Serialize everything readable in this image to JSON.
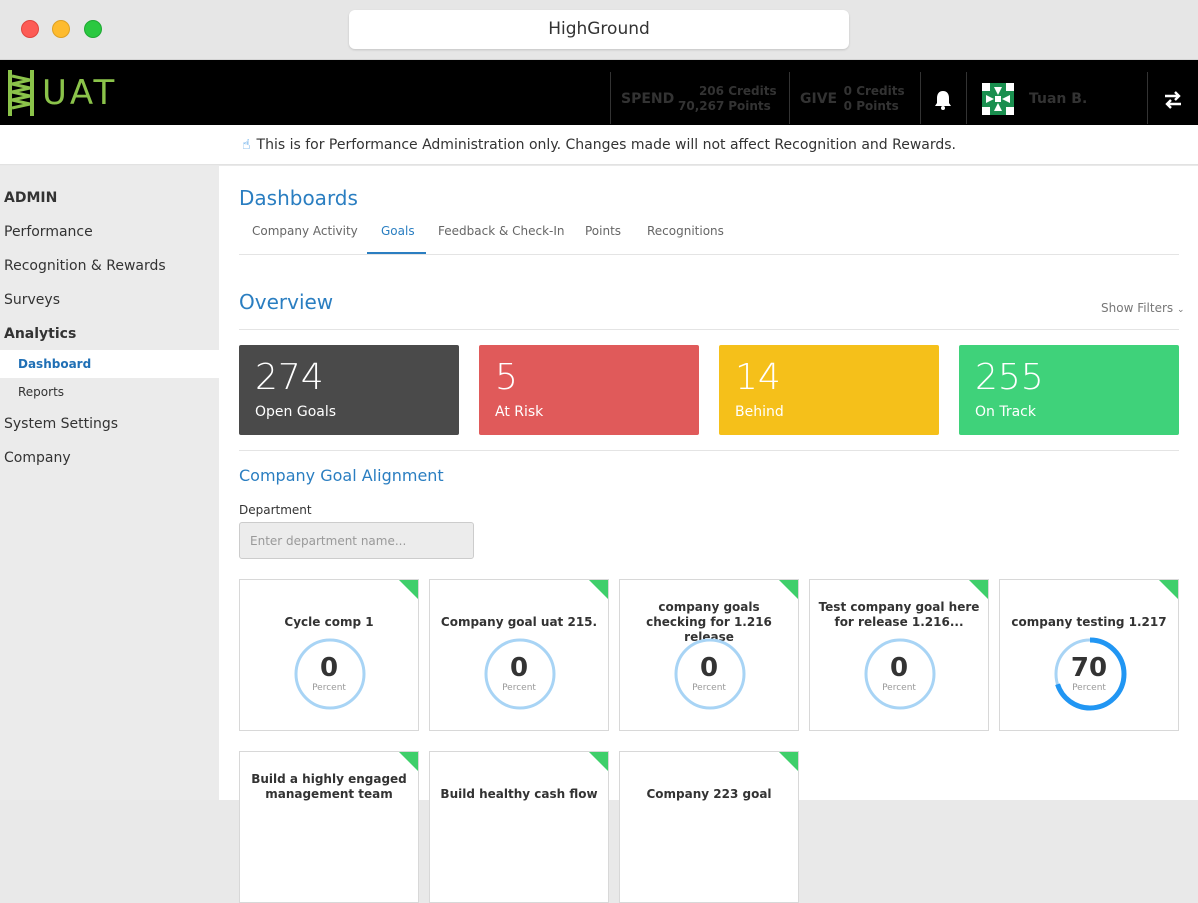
{
  "window": {
    "title": "HighGround"
  },
  "brand": {
    "logo_text": "UAT",
    "accent": "#8bc34a"
  },
  "topbar": {
    "spend_label": "SPEND",
    "spend_credits_num": "206",
    "spend_credits_unit": "Credits",
    "spend_points_num": "70,267",
    "spend_points_unit": "Points",
    "give_label": "GIVE",
    "give_credits_num": "0",
    "give_credits_unit": "Credits",
    "give_points_num": "0",
    "give_points_unit": "Points",
    "user_name": "Tuan B."
  },
  "notice": {
    "icon": "hand-pointer-icon",
    "text": "This is for Performance Administration only. Changes made will not affect Recognition and Rewards."
  },
  "sidebar": {
    "admin": "ADMIN",
    "performance": "Performance",
    "recognition": "Recognition & Rewards",
    "surveys": "Surveys",
    "analytics": "Analytics",
    "dashboard": "Dashboard",
    "reports": "Reports",
    "system_settings": "System Settings",
    "company": "Company"
  },
  "page": {
    "title": "Dashboards",
    "tabs": [
      "Company Activity",
      "Goals",
      "Feedback & Check-In",
      "Points",
      "Recognitions"
    ],
    "active_tab": "Goals",
    "overview_title": "Overview",
    "show_filters": "Show Filters"
  },
  "kpis": [
    {
      "value": "274",
      "label": "Open Goals",
      "color": "#4a4a4a"
    },
    {
      "value": "5",
      "label": "At Risk",
      "color": "#e05a5a"
    },
    {
      "value": "14",
      "label": "Behind",
      "color": "#f5c01a"
    },
    {
      "value": "255",
      "label": "On Track",
      "color": "#3fd27a"
    }
  ],
  "alignment": {
    "title": "Company Goal Alignment",
    "department_label": "Department",
    "department_placeholder": "Enter department name...",
    "percent_label": "Percent",
    "goals": [
      {
        "title": "Cycle comp 1",
        "percent": "0"
      },
      {
        "title": "Company goal uat 215.",
        "percent": "0"
      },
      {
        "title": "company goals checking for 1.216 release",
        "percent": "0"
      },
      {
        "title": "Test company goal here for release 1.216...",
        "percent": "0"
      },
      {
        "title": "company testing 1.217",
        "percent": "70"
      },
      {
        "title": "Build a highly engaged management team",
        "percent": ""
      },
      {
        "title": "Build healthy cash flow",
        "percent": ""
      },
      {
        "title": "Company 223 goal",
        "percent": ""
      }
    ]
  }
}
